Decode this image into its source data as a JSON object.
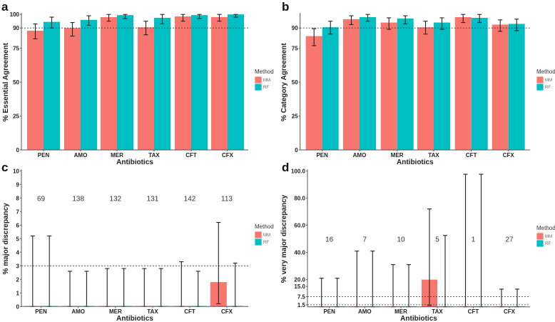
{
  "colors": {
    "MM": "#F8766D",
    "RF": "#00BFC4",
    "axis": "#555555",
    "errorbar": "#222222"
  },
  "chart_data": [
    {
      "panel": "a",
      "type": "bar",
      "categories": [
        "PEN",
        "AMO",
        "MER",
        "TAX",
        "CFT",
        "CFX"
      ],
      "xlabel": "Antibiotics",
      "ylabel": "% Essential Agreement",
      "ylim": [
        0,
        100
      ],
      "yticks": [
        "0",
        "25",
        "50",
        "75",
        "90",
        "100"
      ],
      "threshold_lines": [
        90
      ],
      "legend": {
        "title": "Method",
        "entries": [
          "MM",
          "RF"
        ],
        "placement": "right"
      },
      "series": [
        {
          "name": "MM",
          "values": [
            88,
            90,
            98,
            90.5,
            98.5,
            98
          ],
          "err_low": [
            82,
            84,
            95,
            85,
            95,
            95
          ],
          "err_high": [
            93,
            94,
            100,
            95,
            100,
            100
          ]
        },
        {
          "name": "RF",
          "values": [
            94.5,
            96,
            99.5,
            97.5,
            99.5,
            100
          ],
          "err_low": [
            90,
            92,
            97,
            93,
            97,
            98
          ],
          "err_high": [
            98,
            99,
            100,
            100,
            100,
            100
          ]
        }
      ]
    },
    {
      "panel": "b",
      "type": "bar",
      "categories": [
        "PEN",
        "AMO",
        "MER",
        "TAX",
        "CFT",
        "CFX"
      ],
      "xlabel": "Antibiotics",
      "ylabel": "% Category Agreement",
      "ylim": [
        0,
        100
      ],
      "yticks": [
        "0",
        "25",
        "50",
        "75",
        "90"
      ],
      "threshold_lines": [
        90
      ],
      "legend": {
        "title": "Method",
        "entries": [
          "MM",
          "RF"
        ],
        "placement": "right"
      },
      "series": [
        {
          "name": "MM",
          "values": [
            84,
            96.5,
            94,
            90.5,
            98,
            92.5
          ],
          "err_low": [
            77,
            92.5,
            89,
            85.5,
            94,
            87.5
          ],
          "err_high": [
            89.5,
            99,
            97.5,
            95,
            100,
            96
          ]
        },
        {
          "name": "RF",
          "values": [
            90.5,
            98,
            97,
            94,
            97.5,
            93
          ],
          "err_low": [
            85.5,
            95,
            93,
            89,
            94,
            88
          ],
          "err_high": [
            95,
            100,
            99,
            97.5,
            100,
            96.5
          ]
        }
      ]
    },
    {
      "panel": "c",
      "type": "bar",
      "categories": [
        "PEN",
        "AMO",
        "MER",
        "TAX",
        "CFT",
        "CFX"
      ],
      "xlabel": "Antibiotics",
      "ylabel": "% major discrepancy",
      "ylim": [
        0,
        10
      ],
      "yticks": [
        "0",
        "1",
        "2",
        "3",
        "4",
        "5",
        "6",
        "7",
        "8",
        "9",
        "10"
      ],
      "threshold_lines": [
        3
      ],
      "counts": [
        "69",
        "138",
        "132",
        "131",
        "142",
        "113"
      ],
      "counts_y": 8,
      "legend": {
        "title": "Method",
        "entries": [
          "MM",
          "RF"
        ],
        "placement": "right"
      },
      "series": [
        {
          "name": "MM",
          "values": [
            0,
            0,
            0,
            0,
            0,
            1.8
          ],
          "err_low": [
            0,
            0,
            0,
            0,
            0,
            0.2
          ],
          "err_high": [
            5.2,
            2.6,
            2.8,
            2.8,
            3.3,
            6.2
          ]
        },
        {
          "name": "RF",
          "values": [
            0,
            0,
            0,
            0,
            0,
            0
          ],
          "err_low": [
            0,
            0,
            0,
            0,
            0,
            0
          ],
          "err_high": [
            5.2,
            2.6,
            2.8,
            2.8,
            2.6,
            3.2
          ]
        }
      ]
    },
    {
      "panel": "d",
      "type": "bar",
      "categories": [
        "PEN",
        "AMO",
        "MER",
        "TAX",
        "CFT",
        "CFX"
      ],
      "xlabel": "Antibiotics",
      "ylabel": "% very major discrepancy",
      "ylim": [
        0,
        100
      ],
      "yticks": [
        "1.5",
        "7.5",
        "15.0",
        "20.0",
        "40.0",
        "60.0",
        "80.0",
        "100.0"
      ],
      "threshold_lines": [
        7.5,
        1.5
      ],
      "counts": [
        "16",
        "7",
        "10",
        "5",
        "1",
        "27"
      ],
      "counts_y": 50,
      "legend": {
        "title": "Method",
        "entries": [
          "MM",
          "RF"
        ],
        "placement": "right"
      },
      "series": [
        {
          "name": "MM",
          "values": [
            0,
            0,
            0,
            20,
            0,
            0
          ],
          "err_low": [
            0,
            0,
            0,
            1,
            0,
            0
          ],
          "err_high": [
            21,
            41,
            31,
            72,
            97.5,
            13
          ]
        },
        {
          "name": "RF",
          "values": [
            0,
            0,
            0,
            0,
            0,
            0
          ],
          "err_low": [
            0,
            0,
            0,
            0,
            0,
            0
          ],
          "err_high": [
            21,
            41,
            31,
            52.5,
            97.5,
            13
          ]
        }
      ]
    }
  ]
}
